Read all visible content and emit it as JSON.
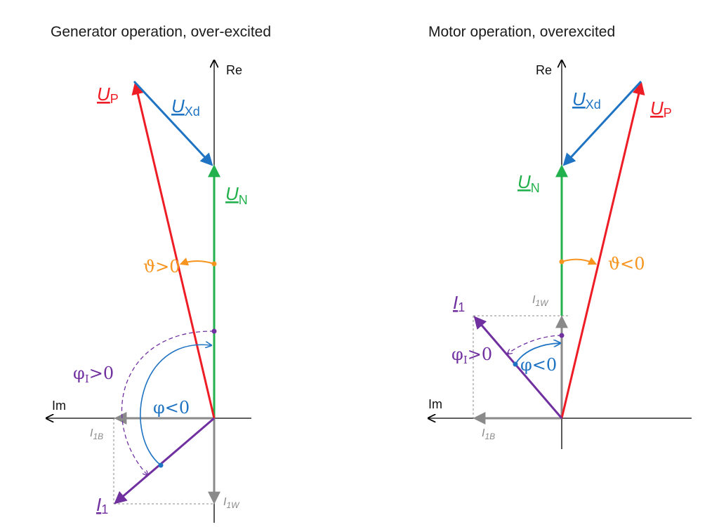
{
  "left": {
    "title": "Generator operation, over-excited",
    "re": "Re",
    "im": "Im",
    "up_main": "U",
    "up_sub": "P",
    "uxd_main": "U",
    "uxd_sub": "Xd",
    "un_main": "U",
    "un_sub": "N",
    "i1_main": "I",
    "i1_sub": "1",
    "i1b_main": "I",
    "i1b_sub": "1B",
    "i1w_main": "I",
    "i1w_sub": "1W",
    "theta": "ϑ>0",
    "phi": "φ<0",
    "phi_i_main": "φ",
    "phi_i_sub": "I",
    "phi_i_rest": ">0"
  },
  "right": {
    "title": "Motor operation, overexcited",
    "re": "Re",
    "im": "Im",
    "up_main": "U",
    "up_sub": "P",
    "uxd_main": "U",
    "uxd_sub": "Xd",
    "un_main": "U",
    "un_sub": "N",
    "i1_main": "I",
    "i1_sub": "1",
    "i1b_main": "I",
    "i1b_sub": "1B",
    "i1w_main": "I",
    "i1w_sub": "1W",
    "theta": "ϑ<0",
    "phi": "φ<0",
    "phi_i_main": "φ",
    "phi_i_sub": "I",
    "phi_i_rest": ">0"
  },
  "colors": {
    "up": "#ee1c25",
    "uxd": "#1f73c3",
    "un": "#22b14c",
    "i1": "#7030a0",
    "grey": "#8a8a8a",
    "theta": "#f7941d"
  }
}
